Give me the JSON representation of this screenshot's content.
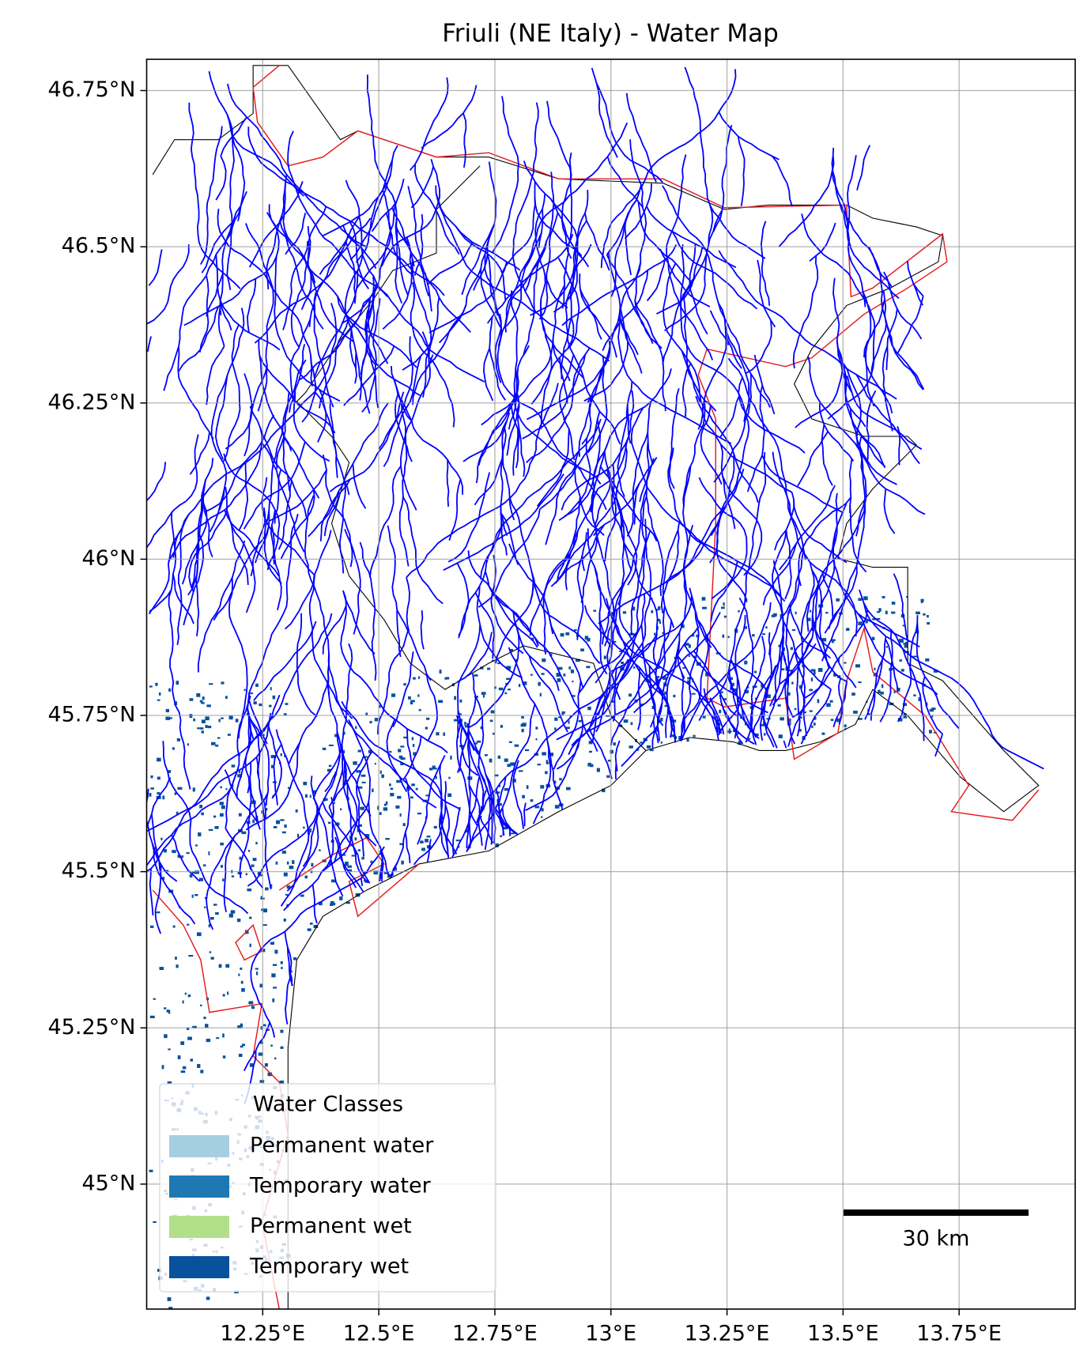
{
  "chart_data": {
    "type": "map",
    "title": "Friuli (NE Italy) - Water Map",
    "xlim": [
      12.0,
      14.0
    ],
    "ylim": [
      44.8,
      46.8
    ],
    "xticks": [
      {
        "value": 12.25,
        "label": "12.25°E"
      },
      {
        "value": 12.5,
        "label": "12.5°E"
      },
      {
        "value": 12.75,
        "label": "12.75°E"
      },
      {
        "value": 13,
        "label": "13°E"
      },
      {
        "value": 13.25,
        "label": "13.25°E"
      },
      {
        "value": 13.5,
        "label": "13.5°E"
      },
      {
        "value": 13.75,
        "label": "13.75°E"
      }
    ],
    "yticks": [
      {
        "value": 45,
        "label": "45°N"
      },
      {
        "value": 45.25,
        "label": "45.25°N"
      },
      {
        "value": 45.5,
        "label": "45.5°N"
      },
      {
        "value": 45.75,
        "label": "45.75°N"
      },
      {
        "value": 46,
        "label": "46°N"
      },
      {
        "value": 46.25,
        "label": "46.25°N"
      },
      {
        "value": 46.5,
        "label": "46.5°N"
      },
      {
        "value": 46.75,
        "label": "46.75°N"
      }
    ],
    "grid": true,
    "legend": {
      "title": "Water Classes",
      "position": "lower left",
      "items": [
        {
          "name": "Permanent water",
          "color": "#a6cee3"
        },
        {
          "name": "Temporary water",
          "color": "#1f78b4"
        },
        {
          "name": "Permanent wet",
          "color": "#b2df8a"
        },
        {
          "name": "Temporary wet",
          "color": "#08519c"
        }
      ]
    },
    "scale_bar": {
      "label": "30 km"
    }
  }
}
